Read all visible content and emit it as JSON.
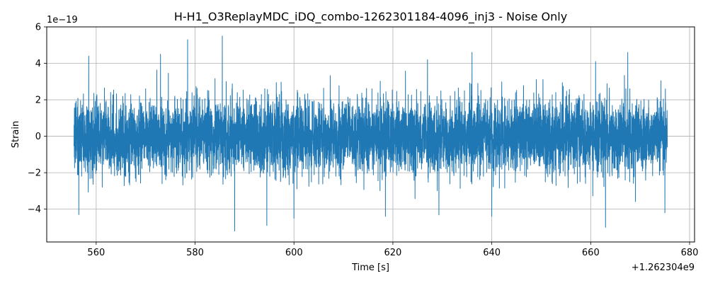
{
  "chart_data": {
    "type": "line",
    "title": "H-H1_O3ReplayMDC_iDQ_combo-1262301184-4096_inj3 - Noise Only",
    "xlabel": "Time [s]",
    "ylabel": "Strain",
    "x_offset_label": "+1.262304e9",
    "y_scale_label": "1e−19",
    "xlim": [
      550,
      681
    ],
    "ylim": [
      -5.8,
      6.0
    ],
    "x_ticks": [
      560,
      580,
      600,
      620,
      640,
      660,
      680
    ],
    "x_tick_labels": [
      "560",
      "580",
      "600",
      "620",
      "640",
      "660",
      "680"
    ],
    "y_ticks": [
      -4,
      -2,
      0,
      2,
      4,
      6
    ],
    "y_tick_labels": [
      "−4",
      "−2",
      "0",
      "2",
      "4",
      "6"
    ],
    "grid": true,
    "line_color": "#1f77b4",
    "series": [
      {
        "x_range": [
          555.5,
          675.5
        ],
        "y_min_approx": -5.2,
        "y_max_approx": 5.5,
        "std_approx": 1.0,
        "peaks": [
          {
            "x": 585.5,
            "y": 5.5
          },
          {
            "x": 578.5,
            "y": 5.3
          },
          {
            "x": 558.5,
            "y": 4.4
          },
          {
            "x": 573.0,
            "y": 4.5
          },
          {
            "x": 636.0,
            "y": 4.6
          },
          {
            "x": 667.5,
            "y": 4.6
          },
          {
            "x": 627.0,
            "y": 4.2
          },
          {
            "x": 661.0,
            "y": 4.1
          },
          {
            "x": 588.0,
            "y": -5.2
          },
          {
            "x": 663.0,
            "y": -5.0
          },
          {
            "x": 594.5,
            "y": -4.9
          },
          {
            "x": 600.0,
            "y": -4.5
          },
          {
            "x": 640.0,
            "y": -4.4
          },
          {
            "x": 618.5,
            "y": -4.4
          },
          {
            "x": 675.0,
            "y": -4.2
          },
          {
            "x": 556.5,
            "y": -4.3
          }
        ]
      }
    ]
  }
}
